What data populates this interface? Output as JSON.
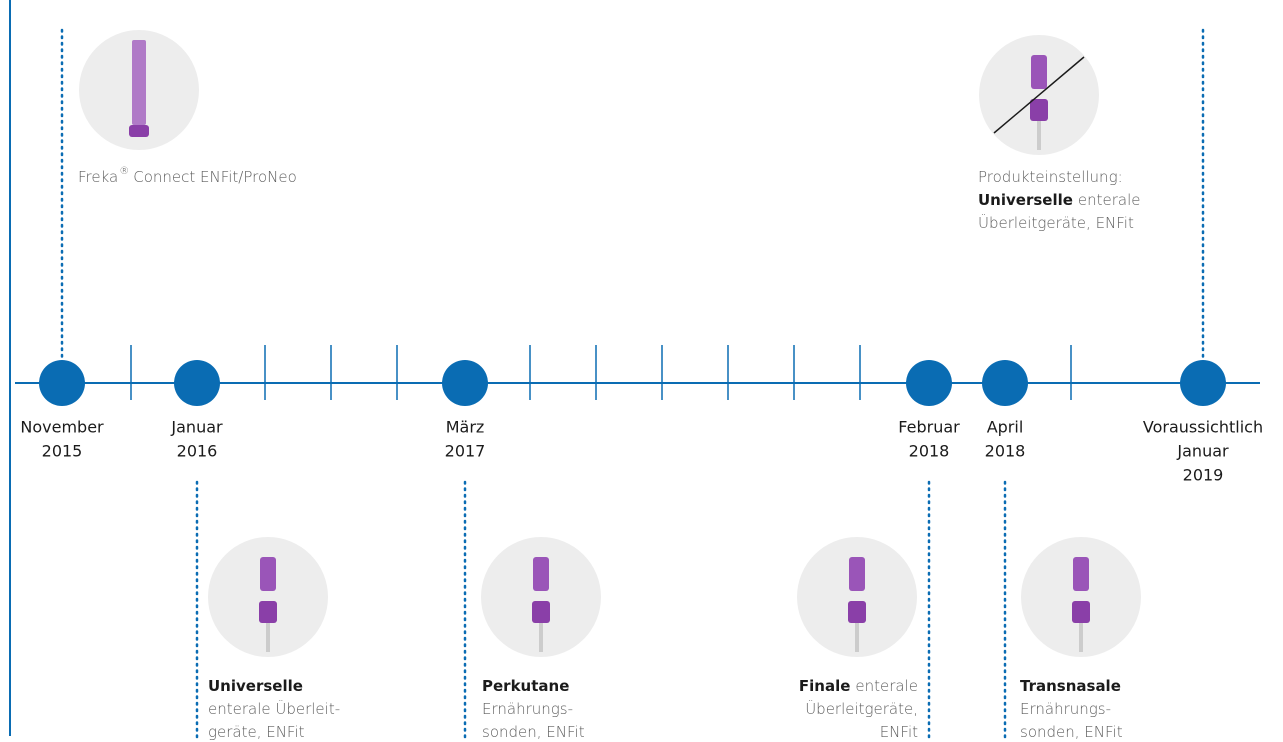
{
  "milestones": [
    {
      "date": [
        "November",
        "2015"
      ],
      "caption": [
        [
          {
            "text": "Freka"
          },
          {
            "text": "®",
            "sup": true
          },
          {
            "text": "Connect ENFit/ProNeo"
          }
        ]
      ]
    },
    {
      "date": [
        "Januar",
        "2016"
      ],
      "caption": [
        [
          {
            "text": "Universelle",
            "bold": true
          }
        ],
        [
          {
            "text": "enterale Überleit-"
          }
        ],
        [
          {
            "text": "geräte, ENFit"
          }
        ]
      ]
    },
    {
      "date": [
        "März",
        "2017"
      ],
      "caption": [
        [
          {
            "text": "Perkutane",
            "bold": true
          }
        ],
        [
          {
            "text": "Ernährungs-"
          }
        ],
        [
          {
            "text": "sonden, ENFit"
          }
        ]
      ]
    },
    {
      "date": [
        "Februar",
        "2018"
      ],
      "caption": [
        [
          {
            "text": "Finale",
            "bold": true
          },
          {
            "text": "enterale"
          }
        ],
        [
          {
            "text": "Überleitgeräte,"
          }
        ],
        [
          {
            "text": "ENFit"
          }
        ]
      ]
    },
    {
      "date": [
        "April",
        "2018"
      ],
      "caption": [
        [
          {
            "text": "Transnasale",
            "bold": true
          }
        ],
        [
          {
            "text": "Ernährungs-"
          }
        ],
        [
          {
            "text": "sonden, ENFit"
          }
        ]
      ]
    },
    {
      "date": [
        "Voraussichtlich",
        "Januar",
        "2019"
      ],
      "caption": [
        [
          {
            "text": "Produkteinstellung:"
          }
        ],
        [
          {
            "text": "Universelle",
            "bold": true
          },
          {
            "text": "enterale"
          }
        ],
        [
          {
            "text": "Überleitgeräte, ENFit"
          }
        ]
      ]
    }
  ]
}
